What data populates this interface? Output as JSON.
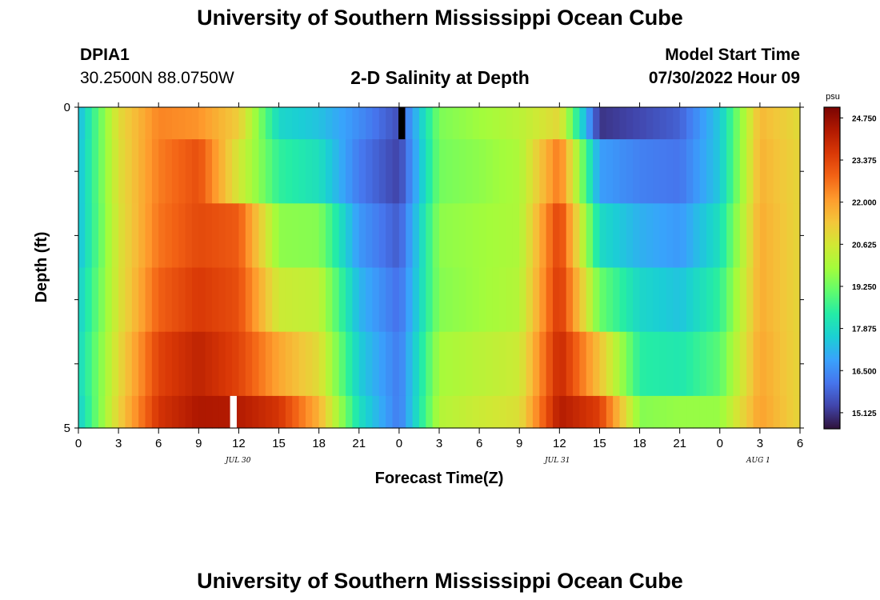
{
  "page": {
    "title_top": "University of Southern Mississippi Ocean Cube",
    "title_bottom": "University of Southern Mississippi Ocean Cube",
    "station_id": "DPIA1",
    "station_coords": "30.2500N  88.0750W",
    "plot_title": "2-D Salinity at Depth",
    "model_start_label": "Model Start Time",
    "model_start_value": "07/30/2022 Hour 09",
    "colorbar_unit": "psu",
    "date_labels": [
      "JUL 30",
      "JUL 31",
      "AUG 1"
    ]
  },
  "colors": {
    "scale": [
      "#30123b",
      "#4145ab",
      "#4675ed",
      "#39a2fc",
      "#1bcfd4",
      "#24eca6",
      "#61fc6c",
      "#a4fc3b",
      "#d1e834",
      "#f3c63a",
      "#fe9b2d",
      "#f36315",
      "#d93806",
      "#b11901",
      "#7a0403"
    ]
  },
  "chart_data": {
    "type": "heatmap",
    "title": "2-D Salinity at Depth",
    "xlabel": "Forecast Time(Z)",
    "ylabel": "Depth (ft)",
    "x_tick_labels": [
      "0",
      "3",
      "6",
      "9",
      "12",
      "15",
      "18",
      "21",
      "0",
      "3",
      "6",
      "9",
      "12",
      "15",
      "18",
      "21",
      "0",
      "3",
      "6"
    ],
    "x_range_hours": [
      0,
      54
    ],
    "y_range_ft": [
      0,
      5
    ],
    "y_tick_labels": [
      "0",
      "5"
    ],
    "colorbar": {
      "unit": "psu",
      "min": 14.6,
      "max": 25.1,
      "tick_labels": [
        "24.750",
        "23.375",
        "22.000",
        "20.625",
        "19.250",
        "17.875",
        "16.500",
        "15.125"
      ]
    },
    "hours": [
      0,
      3,
      6,
      9,
      12,
      15,
      18,
      21,
      24,
      27,
      30,
      33,
      36,
      39,
      42,
      45,
      48,
      51,
      54
    ],
    "depth_layers_ft": [
      "0.0-0.5",
      "0.5-1.5",
      "1.5-2.5",
      "2.5-3.5",
      "3.5-4.5",
      "4.5-5.0"
    ],
    "salinity_psu": [
      [
        17.2,
        20.9,
        22.4,
        22.2,
        21.2,
        17.8,
        17.4,
        16.5,
        15.5,
        19.4,
        19.8,
        20.2,
        21.0,
        15.1,
        15.4,
        15.8,
        17.5,
        21.6,
        20.9
      ],
      [
        17.3,
        20.8,
        22.5,
        23.2,
        20.6,
        18.5,
        18.0,
        16.2,
        15.3,
        19.3,
        19.6,
        20.0,
        22.6,
        16.8,
        16.3,
        16.1,
        17.5,
        21.7,
        21.0
      ],
      [
        17.3,
        20.7,
        22.6,
        23.3,
        23.0,
        19.6,
        19.5,
        16.7,
        15.7,
        19.6,
        19.8,
        20.0,
        23.5,
        17.9,
        17.1,
        16.7,
        18.0,
        21.8,
        21.0
      ],
      [
        17.6,
        20.7,
        22.9,
        23.6,
        23.2,
        20.5,
        20.3,
        17.2,
        16.0,
        19.5,
        19.8,
        20.1,
        23.7,
        19.2,
        17.8,
        17.4,
        18.5,
        21.8,
        21.0
      ],
      [
        17.8,
        20.9,
        23.4,
        24.1,
        23.4,
        21.9,
        20.9,
        17.6,
        16.2,
        19.9,
        20.2,
        20.5,
        24.0,
        21.4,
        18.4,
        18.2,
        19.0,
        21.9,
        21.0
      ],
      [
        17.6,
        21.1,
        23.7,
        24.4,
        24.3,
        23.7,
        21.7,
        18.0,
        16.2,
        20.1,
        20.5,
        20.8,
        24.3,
        23.5,
        19.5,
        19.7,
        19.7,
        22.0,
        21.0
      ]
    ],
    "masked_cells": [
      {
        "hour": 24.2,
        "depth_ft": 0.25,
        "color": "#000000"
      },
      {
        "hour": 11.6,
        "depth_ft": 4.75,
        "color": "#ffffff"
      }
    ]
  }
}
